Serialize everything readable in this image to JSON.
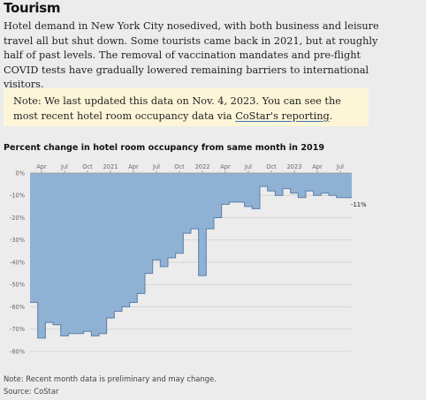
{
  "section": {
    "title": "Tourism"
  },
  "intro": {
    "text": "Hotel demand in New York City nosedived, with both business and leisure travel all but shut down. Some tourists came back in 2021, but at roughly half of past levels. The removal of vaccination mandates and pre-flight COVID tests have gradually lowered remaining barriers to international visitors."
  },
  "note": {
    "prefix": "Note: We last updated this data on Nov. 4, 2023. You can see the most recent hotel room occupancy data via ",
    "link_label": "CoStar's reporting",
    "suffix": "."
  },
  "footer": {
    "note": "Note: Recent month data is preliminary and may change.",
    "source": "Source: CoStar"
  },
  "colors": {
    "fill": "#8fb1d4",
    "stroke": "#5a7fa8",
    "grid": "#cfcfcf"
  },
  "chart_data": {
    "type": "area",
    "title": "Percent change in hotel room occupancy from same month in 2019",
    "xlabel": "",
    "ylabel": "",
    "ylim": [
      -80,
      0
    ],
    "yticks": [
      0,
      -10,
      -20,
      -30,
      -40,
      -50,
      -60,
      -70,
      -80
    ],
    "ytick_labels": [
      "0%",
      "-10%",
      "-20%",
      "-30%",
      "-40%",
      "-50%",
      "-60%",
      "-70%",
      "-80%"
    ],
    "xtick_labels": [
      {
        "month": "2020-04",
        "label": "Apr"
      },
      {
        "month": "2020-07",
        "label": "Jul"
      },
      {
        "month": "2020-10",
        "label": "Oct"
      },
      {
        "month": "2021-01",
        "label": "2021"
      },
      {
        "month": "2021-04",
        "label": "Apr"
      },
      {
        "month": "2021-07",
        "label": "Jul"
      },
      {
        "month": "2021-10",
        "label": "Oct"
      },
      {
        "month": "2022-01",
        "label": "2022"
      },
      {
        "month": "2022-04",
        "label": "Apr"
      },
      {
        "month": "2022-07",
        "label": "Jul"
      },
      {
        "month": "2022-10",
        "label": "Oct"
      },
      {
        "month": "2023-01",
        "label": "2023"
      },
      {
        "month": "2023-04",
        "label": "Apr"
      },
      {
        "month": "2023-07",
        "label": "Jul"
      }
    ],
    "grid": true,
    "series": [
      {
        "x": [
          "2020-03",
          "2020-04",
          "2020-05",
          "2020-06",
          "2020-07",
          "2020-08",
          "2020-09",
          "2020-10",
          "2020-11",
          "2020-12",
          "2021-01",
          "2021-02",
          "2021-03",
          "2021-04",
          "2021-05",
          "2021-06",
          "2021-07",
          "2021-08",
          "2021-09",
          "2021-10",
          "2021-11",
          "2021-12",
          "2022-01",
          "2022-02",
          "2022-03",
          "2022-04",
          "2022-05",
          "2022-06",
          "2022-07",
          "2022-08",
          "2022-09",
          "2022-10",
          "2022-11",
          "2022-12",
          "2023-01",
          "2023-02",
          "2023-03",
          "2023-04",
          "2023-05",
          "2023-06",
          "2023-07",
          "2023-08"
        ],
        "values": [
          -58,
          -74,
          -67,
          -68,
          -73,
          -72,
          -72,
          -71,
          -73,
          -72,
          -65,
          -62,
          -60,
          -58,
          -54,
          -45,
          -39,
          -42,
          -38,
          -36,
          -27,
          -25,
          -46,
          -25,
          -20,
          -14,
          -13,
          -13,
          -15,
          -16,
          -6,
          -8,
          -10,
          -7,
          -9,
          -11,
          -8,
          -10,
          -9,
          -10,
          -11,
          -11
        ]
      }
    ],
    "annotations": [
      {
        "month": "2023-08",
        "value": -11,
        "text": "-11%"
      }
    ]
  }
}
